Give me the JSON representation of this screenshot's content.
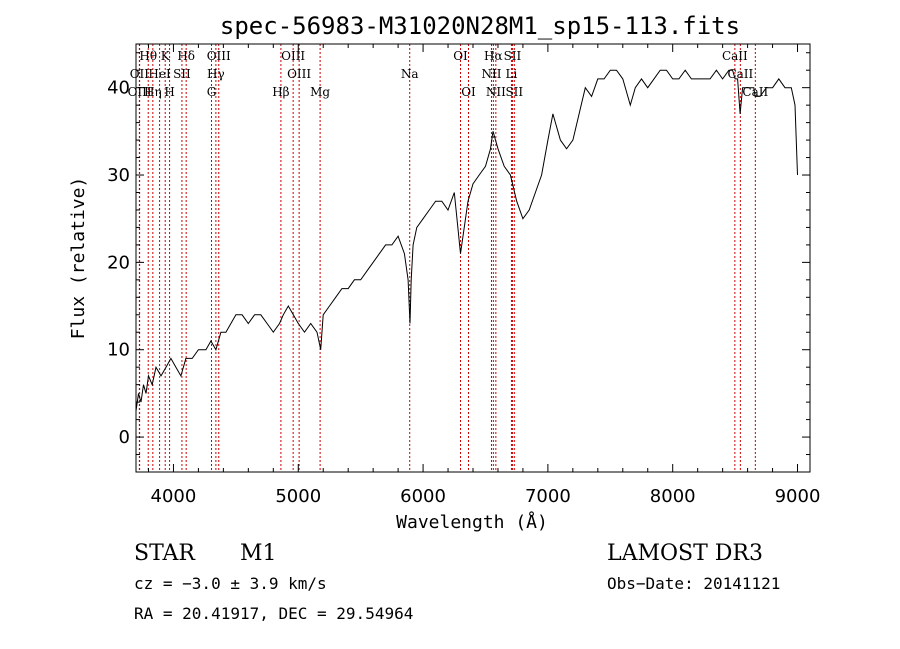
{
  "chart_data": {
    "type": "line",
    "title": "spec-56983-M31020N28M1_sp15-113.fits",
    "xlabel": "Wavelength (Å)",
    "ylabel": "Flux (relative)",
    "xlim": [
      3700,
      9100
    ],
    "ylim": [
      -4,
      45
    ],
    "xticks": [
      4000,
      5000,
      6000,
      7000,
      8000,
      9000
    ],
    "yticks": [
      0,
      10,
      20,
      30,
      40
    ],
    "series": [
      {
        "name": "flux",
        "x": [
          3700,
          3720,
          3740,
          3760,
          3780,
          3800,
          3830,
          3860,
          3900,
          3940,
          3980,
          4020,
          4060,
          4100,
          4150,
          4200,
          4260,
          4300,
          4340,
          4380,
          4420,
          4460,
          4500,
          4550,
          4600,
          4650,
          4700,
          4750,
          4800,
          4850,
          4880,
          4920,
          4960,
          5000,
          5050,
          5100,
          5150,
          5180,
          5200,
          5250,
          5300,
          5350,
          5400,
          5450,
          5500,
          5550,
          5600,
          5650,
          5700,
          5750,
          5800,
          5850,
          5880,
          5895,
          5905,
          5920,
          5950,
          6000,
          6050,
          6100,
          6150,
          6200,
          6250,
          6300,
          6340,
          6360,
          6400,
          6450,
          6500,
          6540,
          6560,
          6580,
          6600,
          6650,
          6700,
          6750,
          6800,
          6850,
          6900,
          6950,
          7000,
          7040,
          7060,
          7080,
          7100,
          7150,
          7200,
          7250,
          7300,
          7350,
          7400,
          7450,
          7500,
          7550,
          7600,
          7640,
          7660,
          7700,
          7750,
          7800,
          7850,
          7900,
          7950,
          8000,
          8050,
          8100,
          8150,
          8200,
          8250,
          8300,
          8350,
          8400,
          8450,
          8480,
          8500,
          8520,
          8540,
          8560,
          8600,
          8650,
          8660,
          8700,
          8750,
          8800,
          8850,
          8900,
          8950,
          8980,
          9000
        ],
        "values": [
          3,
          5,
          4,
          6,
          5,
          7,
          6,
          8,
          7,
          8,
          9,
          8,
          7,
          9,
          9,
          10,
          10,
          11,
          10,
          12,
          12,
          13,
          14,
          14,
          13,
          14,
          14,
          13,
          12,
          13,
          14,
          15,
          14,
          13,
          12,
          13,
          12,
          10,
          14,
          15,
          16,
          17,
          17,
          18,
          18,
          19,
          20,
          21,
          22,
          22,
          23,
          21,
          18,
          13,
          18,
          22,
          24,
          25,
          26,
          27,
          27,
          26,
          28,
          21,
          25,
          27,
          29,
          30,
          31,
          33,
          35,
          34,
          33,
          31,
          30,
          27,
          25,
          26,
          28,
          30,
          34,
          37,
          36,
          35,
          34,
          33,
          34,
          37,
          40,
          39,
          41,
          41,
          42,
          42,
          41,
          39,
          38,
          40,
          41,
          40,
          41,
          42,
          42,
          41,
          41,
          42,
          41,
          41,
          41,
          41,
          42,
          41,
          42,
          42,
          41,
          41,
          37,
          40,
          40,
          40,
          39,
          39,
          40,
          40,
          41,
          40,
          40,
          38,
          30
        ],
        "color": "#000000"
      }
    ],
    "spectral_lines": [
      {
        "label": "Hθ",
        "wavelength": 3798,
        "row": 1
      },
      {
        "label": "OII",
        "wavelength": 3727,
        "row": 2
      },
      {
        "label": "OIII",
        "wavelength": 3729,
        "row": 3
      },
      {
        "label": "Hη",
        "wavelength": 3835,
        "row": 3
      },
      {
        "label": "K",
        "wavelength": 3934,
        "row": 1
      },
      {
        "label": "HeI",
        "wavelength": 3889,
        "row": 2
      },
      {
        "label": "SII",
        "wavelength": 4068,
        "row": 2
      },
      {
        "label": "H",
        "wavelength": 3969,
        "row": 3
      },
      {
        "label": "Hδ",
        "wavelength": 4102,
        "row": 1
      },
      {
        "label": "OIII",
        "wavelength": 4363,
        "row": 1
      },
      {
        "label": "Hγ",
        "wavelength": 4340,
        "row": 2
      },
      {
        "label": "G",
        "wavelength": 4305,
        "row": 3
      },
      {
        "label": "Hβ",
        "wavelength": 4861,
        "row": 3
      },
      {
        "label": "OIII",
        "wavelength": 4959,
        "row": 1
      },
      {
        "label": "OIII",
        "wavelength": 5007,
        "row": 2
      },
      {
        "label": "Mg",
        "wavelength": 5175,
        "row": 3
      },
      {
        "label": "Na",
        "wavelength": 5893,
        "row": 2
      },
      {
        "label": "OI",
        "wavelength": 6300,
        "row": 1
      },
      {
        "label": "OI",
        "wavelength": 6364,
        "row": 3
      },
      {
        "label": "Hα",
        "wavelength": 6563,
        "row": 1
      },
      {
        "label": "SII",
        "wavelength": 6716,
        "row": 1
      },
      {
        "label": "NII",
        "wavelength": 6548,
        "row": 2
      },
      {
        "label": "Li",
        "wavelength": 6708,
        "row": 2
      },
      {
        "label": "NII",
        "wavelength": 6583,
        "row": 3
      },
      {
        "label": "SII",
        "wavelength": 6731,
        "row": 3
      },
      {
        "label": "CaII",
        "wavelength": 8498,
        "row": 1
      },
      {
        "label": "CaII",
        "wavelength": 8542,
        "row": 2
      },
      {
        "label": "CaII",
        "wavelength": 8662,
        "row": 3
      }
    ]
  },
  "info": {
    "class": "STAR",
    "subclass": "M1",
    "survey": "LAMOST DR3",
    "cz": "cz = −3.0 ± 3.9 km/s",
    "obs_date": "Obs−Date: 20141121",
    "coords": "RA =  20.41917, DEC =  29.54964"
  }
}
